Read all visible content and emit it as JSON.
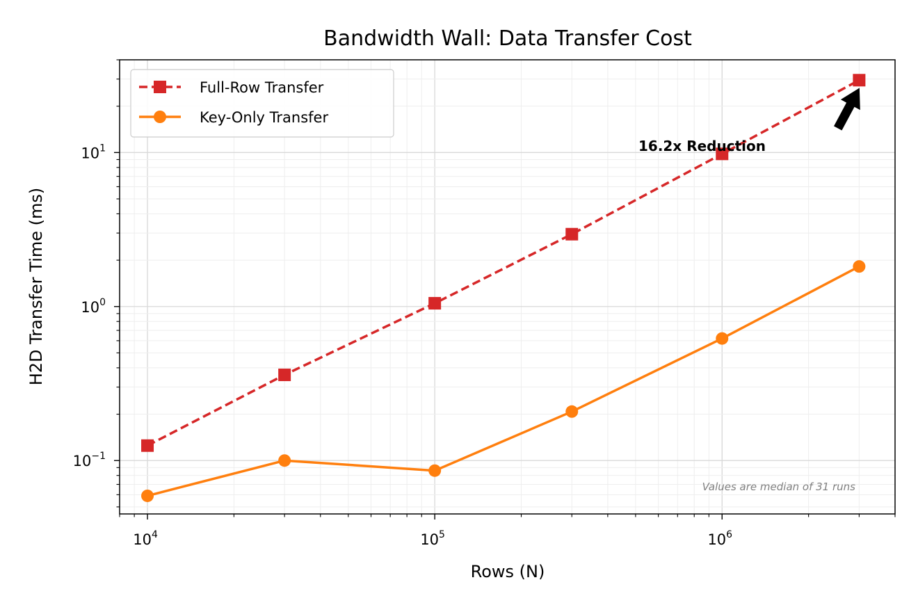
{
  "chart_data": {
    "type": "line",
    "title": "Bandwidth Wall: Data Transfer Cost",
    "xlabel": "Rows (N)",
    "ylabel": "H2D Transfer Time (ms)",
    "xscale": "log",
    "yscale": "log",
    "xlim": [
      8000,
      4000000
    ],
    "ylim": [
      0.045,
      40
    ],
    "x_ticks": [
      {
        "value": 10000,
        "base": "10",
        "exp": "4"
      },
      {
        "value": 100000,
        "base": "10",
        "exp": "5"
      },
      {
        "value": 1000000,
        "base": "10",
        "exp": "6"
      }
    ],
    "y_ticks": [
      {
        "value": 0.1,
        "base": "10",
        "exp": "−1"
      },
      {
        "value": 1,
        "base": "10",
        "exp": "0"
      },
      {
        "value": 10,
        "base": "10",
        "exp": "1"
      }
    ],
    "grid": true,
    "legend_position": "upper-left",
    "x": [
      10000,
      30000,
      100000,
      300000,
      1000000,
      3000000
    ],
    "series": [
      {
        "name": "Full-Row Transfer",
        "color": "#d62728",
        "linestyle": "dashed",
        "marker": "square",
        "values": [
          0.125,
          0.36,
          1.05,
          2.95,
          9.8,
          29.5
        ]
      },
      {
        "name": "Key-Only Transfer",
        "color": "#ff7f0e",
        "linestyle": "solid",
        "marker": "circle",
        "values": [
          0.059,
          0.1,
          0.086,
          0.208,
          0.62,
          1.82
        ]
      }
    ],
    "annotation": {
      "text": "16.2x Reduction",
      "arrow_target": [
        3000000,
        29.5
      ]
    },
    "footnote": "Values are median of 31 runs"
  }
}
